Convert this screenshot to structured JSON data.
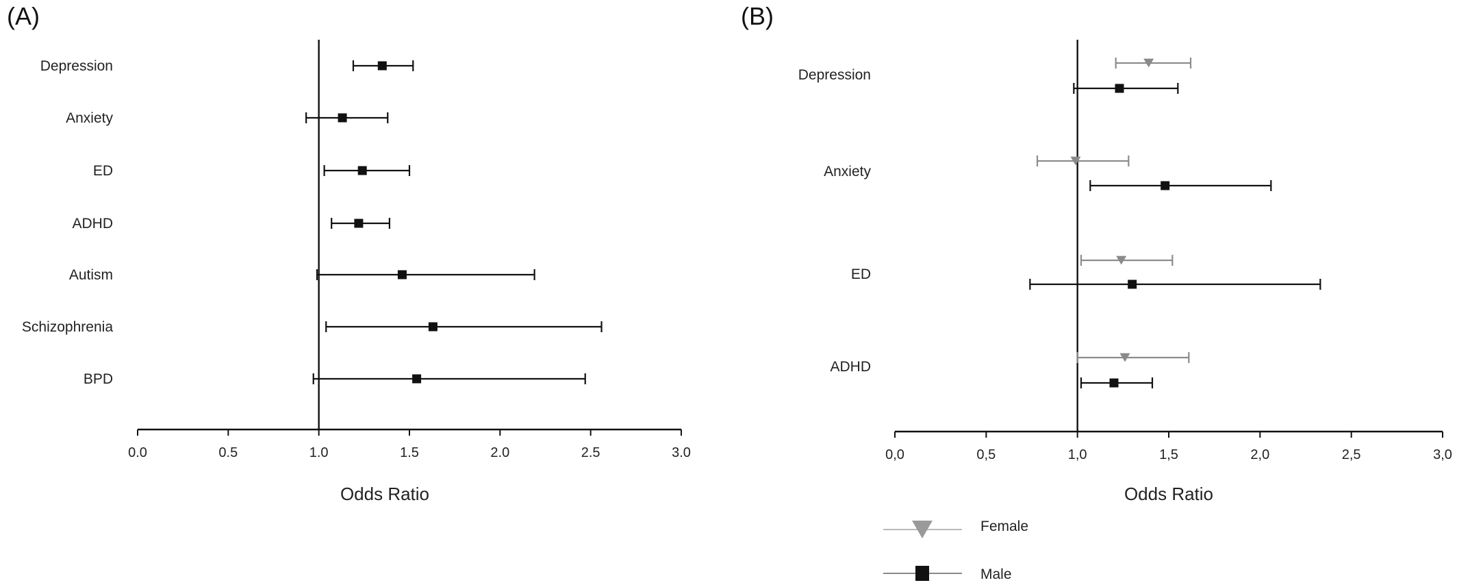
{
  "colors": {
    "male": "#111111",
    "female": "#8c8c8c",
    "female_marker": "#8a8a8a",
    "legend_female_line": "#b8b8b8",
    "legend_male_line": "#8a8a8a",
    "axis": "#111111"
  },
  "chart_data": [
    {
      "panel_label": "(A)",
      "type": "forest",
      "xlabel": "Odds Ratio",
      "xlim": [
        0,
        3.0
      ],
      "reference_line": 1.0,
      "x_ticks": [
        0.0,
        0.5,
        1.0,
        1.5,
        2.0,
        2.5,
        3.0
      ],
      "x_tick_labels": [
        "0.0",
        "0.5",
        "1.0",
        "1.5",
        "2.0",
        "2.5",
        "3.0"
      ],
      "categories": [
        "Depression",
        "Anxiety",
        "ED",
        "ADHD",
        "Autism",
        "Schizophrenia",
        "BPD"
      ],
      "series": [
        {
          "marker": "square",
          "points": [
            {
              "category": "Depression",
              "or": 1.35,
              "lo": 1.19,
              "hi": 1.52
            },
            {
              "category": "Anxiety",
              "or": 1.13,
              "lo": 0.93,
              "hi": 1.38
            },
            {
              "category": "ED",
              "or": 1.24,
              "lo": 1.03,
              "hi": 1.5
            },
            {
              "category": "ADHD",
              "or": 1.22,
              "lo": 1.07,
              "hi": 1.39
            },
            {
              "category": "Autism",
              "or": 1.46,
              "lo": 0.99,
              "hi": 2.19
            },
            {
              "category": "Schizophrenia",
              "or": 1.63,
              "lo": 1.04,
              "hi": 2.56
            },
            {
              "category": "BPD",
              "or": 1.54,
              "lo": 0.97,
              "hi": 2.47
            }
          ]
        }
      ]
    },
    {
      "panel_label": "(B)",
      "type": "forest",
      "xlabel": "Odds Ratio",
      "xlim": [
        0,
        3.0
      ],
      "reference_line": 1.0,
      "x_ticks": [
        0.0,
        0.5,
        1.0,
        1.5,
        2.0,
        2.5,
        3.0
      ],
      "x_tick_labels": [
        "0,0",
        "0,5",
        "1,0",
        "1,5",
        "2,0",
        "2,5",
        "3,0"
      ],
      "categories": [
        "Depression",
        "Anxiety",
        "ED",
        "ADHD"
      ],
      "legend": [
        {
          "name": "Female",
          "marker": "triangle-down"
        },
        {
          "name": "Male",
          "marker": "square"
        }
      ],
      "series": [
        {
          "name": "Female",
          "marker": "triangle-down",
          "points": [
            {
              "category": "Depression",
              "or": 1.39,
              "lo": 1.21,
              "hi": 1.62
            },
            {
              "category": "Anxiety",
              "or": 0.99,
              "lo": 0.78,
              "hi": 1.28
            },
            {
              "category": "ED",
              "or": 1.24,
              "lo": 1.02,
              "hi": 1.52
            },
            {
              "category": "ADHD",
              "or": 1.26,
              "lo": 1.0,
              "hi": 1.61
            }
          ]
        },
        {
          "name": "Male",
          "marker": "square",
          "points": [
            {
              "category": "Depression",
              "or": 1.23,
              "lo": 0.98,
              "hi": 1.55
            },
            {
              "category": "Anxiety",
              "or": 1.48,
              "lo": 1.07,
              "hi": 2.06
            },
            {
              "category": "ED",
              "or": 1.3,
              "lo": 0.74,
              "hi": 2.33
            },
            {
              "category": "ADHD",
              "or": 1.2,
              "lo": 1.02,
              "hi": 1.41
            }
          ]
        }
      ]
    }
  ]
}
